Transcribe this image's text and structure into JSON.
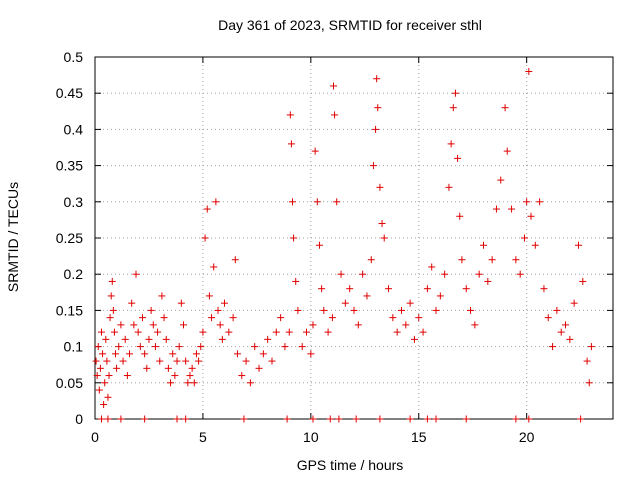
{
  "chart_data": {
    "type": "scatter",
    "title": "Day 361 of 2023, SRMTID for receiver sthl",
    "xlabel": "GPS time / hours",
    "ylabel": "SRMTID / TECUs",
    "xlim": [
      0,
      24
    ],
    "ylim": [
      0,
      0.5
    ],
    "xticks": [
      0,
      5,
      10,
      15,
      20
    ],
    "xtick_labels": [
      "0",
      "5",
      "10",
      "15",
      "20"
    ],
    "yticks": [
      0,
      0.05,
      0.1,
      0.15,
      0.2,
      0.25,
      0.3,
      0.35,
      0.4,
      0.45,
      0.5
    ],
    "ytick_labels": [
      "0",
      "0.05",
      "0.1",
      "0.15",
      "0.2",
      "0.25",
      "0.3",
      "0.35",
      "0.4",
      "0.45",
      "0.5"
    ],
    "grid": true,
    "marker": "plus",
    "marker_color": "#e00000",
    "series": [
      {
        "name": "SRMTID",
        "points": [
          [
            0.05,
            0.08
          ],
          [
            0.1,
            0.06
          ],
          [
            0.15,
            0.1
          ],
          [
            0.2,
            0.04
          ],
          [
            0.25,
            0.07
          ],
          [
            0.3,
            0.12
          ],
          [
            0.35,
            0.09
          ],
          [
            0.4,
            0.02
          ],
          [
            0.45,
            0.05
          ],
          [
            0.5,
            0.11
          ],
          [
            0.55,
            0.08
          ],
          [
            0.6,
            0.03
          ],
          [
            0.65,
            0.06
          ],
          [
            0.7,
            0.14
          ],
          [
            0.75,
            0.17
          ],
          [
            0.8,
            0.19
          ],
          [
            0.85,
            0.15
          ],
          [
            0.9,
            0.12
          ],
          [
            0.95,
            0.09
          ],
          [
            1.0,
            0.07
          ],
          [
            1.1,
            0.1
          ],
          [
            1.2,
            0.13
          ],
          [
            1.3,
            0.08
          ],
          [
            1.4,
            0.11
          ],
          [
            1.5,
            0.06
          ],
          [
            1.6,
            0.09
          ],
          [
            1.7,
            0.16
          ],
          [
            1.8,
            0.13
          ],
          [
            1.9,
            0.2
          ],
          [
            2.0,
            0.12
          ],
          [
            2.1,
            0.1
          ],
          [
            2.2,
            0.14
          ],
          [
            2.3,
            0.09
          ],
          [
            2.4,
            0.07
          ],
          [
            2.5,
            0.11
          ],
          [
            2.6,
            0.15
          ],
          [
            2.7,
            0.13
          ],
          [
            2.8,
            0.1
          ],
          [
            2.9,
            0.12
          ],
          [
            3.0,
            0.08
          ],
          [
            3.1,
            0.17
          ],
          [
            3.2,
            0.14
          ],
          [
            3.3,
            0.11
          ],
          [
            3.4,
            0.07
          ],
          [
            3.5,
            0.05
          ],
          [
            3.6,
            0.09
          ],
          [
            3.7,
            0.06
          ],
          [
            3.8,
            0.08
          ],
          [
            3.9,
            0.1
          ],
          [
            4.0,
            0.16
          ],
          [
            4.1,
            0.13
          ],
          [
            4.2,
            0.08
          ],
          [
            4.3,
            0.05
          ],
          [
            4.4,
            0.06
          ],
          [
            4.5,
            0.07
          ],
          [
            4.6,
            0.05
          ],
          [
            4.7,
            0.09
          ],
          [
            4.8,
            0.08
          ],
          [
            4.9,
            0.1
          ],
          [
            5.0,
            0.12
          ],
          [
            5.1,
            0.25
          ],
          [
            5.2,
            0.29
          ],
          [
            5.3,
            0.17
          ],
          [
            5.4,
            0.14
          ],
          [
            5.5,
            0.21
          ],
          [
            5.6,
            0.3
          ],
          [
            5.7,
            0.15
          ],
          [
            5.8,
            0.13
          ],
          [
            5.9,
            0.11
          ],
          [
            6.0,
            0.16
          ],
          [
            6.2,
            0.12
          ],
          [
            6.4,
            0.14
          ],
          [
            6.5,
            0.22
          ],
          [
            6.6,
            0.09
          ],
          [
            6.8,
            0.06
          ],
          [
            7.0,
            0.08
          ],
          [
            7.2,
            0.05
          ],
          [
            7.4,
            0.1
          ],
          [
            7.6,
            0.07
          ],
          [
            7.8,
            0.09
          ],
          [
            8.0,
            0.11
          ],
          [
            8.2,
            0.08
          ],
          [
            8.4,
            0.12
          ],
          [
            8.6,
            0.14
          ],
          [
            8.8,
            0.1
          ],
          [
            9.0,
            0.12
          ],
          [
            9.05,
            0.42
          ],
          [
            9.1,
            0.38
          ],
          [
            9.15,
            0.3
          ],
          [
            9.2,
            0.25
          ],
          [
            9.3,
            0.19
          ],
          [
            9.4,
            0.15
          ],
          [
            9.6,
            0.1
          ],
          [
            9.8,
            0.12
          ],
          [
            10.0,
            0.09
          ],
          [
            10.1,
            0.13
          ],
          [
            10.2,
            0.37
          ],
          [
            10.3,
            0.3
          ],
          [
            10.4,
            0.24
          ],
          [
            10.5,
            0.18
          ],
          [
            10.6,
            0.15
          ],
          [
            10.8,
            0.12
          ],
          [
            11.0,
            0.14
          ],
          [
            11.05,
            0.46
          ],
          [
            11.1,
            0.42
          ],
          [
            11.2,
            0.3
          ],
          [
            11.4,
            0.2
          ],
          [
            11.6,
            0.16
          ],
          [
            11.8,
            0.18
          ],
          [
            12.0,
            0.15
          ],
          [
            12.2,
            0.13
          ],
          [
            12.4,
            0.2
          ],
          [
            12.6,
            0.17
          ],
          [
            12.8,
            0.22
          ],
          [
            12.9,
            0.35
          ],
          [
            13.0,
            0.4
          ],
          [
            13.05,
            0.47
          ],
          [
            13.1,
            0.43
          ],
          [
            13.2,
            0.32
          ],
          [
            13.3,
            0.27
          ],
          [
            13.4,
            0.25
          ],
          [
            13.6,
            0.18
          ],
          [
            13.8,
            0.14
          ],
          [
            14.0,
            0.12
          ],
          [
            14.2,
            0.15
          ],
          [
            14.4,
            0.13
          ],
          [
            14.6,
            0.16
          ],
          [
            14.8,
            0.11
          ],
          [
            15.0,
            0.14
          ],
          [
            15.2,
            0.12
          ],
          [
            15.4,
            0.18
          ],
          [
            15.6,
            0.21
          ],
          [
            15.8,
            0.15
          ],
          [
            16.0,
            0.17
          ],
          [
            16.2,
            0.2
          ],
          [
            16.4,
            0.32
          ],
          [
            16.5,
            0.38
          ],
          [
            16.6,
            0.43
          ],
          [
            16.7,
            0.45
          ],
          [
            16.8,
            0.36
          ],
          [
            16.9,
            0.28
          ],
          [
            17.0,
            0.22
          ],
          [
            17.2,
            0.18
          ],
          [
            17.4,
            0.15
          ],
          [
            17.6,
            0.13
          ],
          [
            17.8,
            0.2
          ],
          [
            18.0,
            0.24
          ],
          [
            18.2,
            0.19
          ],
          [
            18.4,
            0.22
          ],
          [
            18.6,
            0.29
          ],
          [
            18.8,
            0.33
          ],
          [
            19.0,
            0.43
          ],
          [
            19.1,
            0.37
          ],
          [
            19.3,
            0.29
          ],
          [
            19.5,
            0.22
          ],
          [
            19.7,
            0.2
          ],
          [
            19.9,
            0.25
          ],
          [
            20.0,
            0.3
          ],
          [
            20.1,
            0.48
          ],
          [
            20.2,
            0.28
          ],
          [
            20.4,
            0.24
          ],
          [
            20.6,
            0.3
          ],
          [
            20.8,
            0.18
          ],
          [
            21.0,
            0.14
          ],
          [
            21.2,
            0.1
          ],
          [
            21.4,
            0.15
          ],
          [
            21.6,
            0.12
          ],
          [
            21.8,
            0.13
          ],
          [
            22.0,
            0.11
          ],
          [
            22.2,
            0.16
          ],
          [
            22.4,
            0.24
          ],
          [
            22.6,
            0.19
          ],
          [
            22.8,
            0.08
          ],
          [
            22.9,
            0.05
          ],
          [
            23.0,
            0.1
          ],
          [
            0.3,
            0.0
          ],
          [
            0.6,
            0.0
          ],
          [
            1.2,
            0.0
          ],
          [
            2.3,
            0.0
          ],
          [
            3.8,
            0.0
          ],
          [
            4.2,
            0.0
          ],
          [
            6.9,
            0.0
          ],
          [
            8.9,
            0.0
          ],
          [
            10.1,
            0.0
          ],
          [
            10.9,
            0.0
          ],
          [
            11.3,
            0.0
          ],
          [
            12.1,
            0.0
          ],
          [
            13.2,
            0.0
          ],
          [
            14.6,
            0.0
          ],
          [
            15.4,
            0.0
          ],
          [
            15.8,
            0.0
          ],
          [
            17.2,
            0.0
          ],
          [
            19.5,
            0.0
          ],
          [
            20.1,
            0.0
          ],
          [
            22.5,
            0.0
          ]
        ]
      }
    ]
  }
}
